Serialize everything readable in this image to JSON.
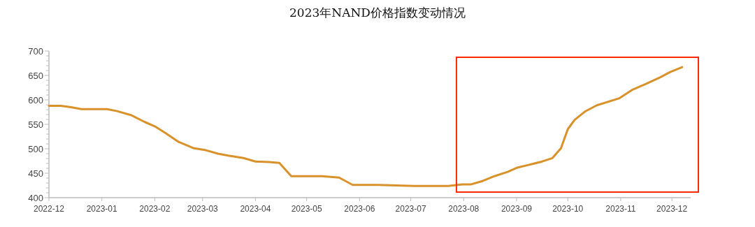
{
  "chart_data": {
    "type": "line",
    "title": "2023年NAND价格指数变动情况",
    "x": [
      "2022-12-01",
      "2022-12-08",
      "2022-12-14",
      "2022-12-20",
      "2023-01-04",
      "2023-01-10",
      "2023-01-18",
      "2023-01-26",
      "2023-02-01",
      "2023-02-07",
      "2023-02-15",
      "2023-02-24",
      "2023-03-03",
      "2023-03-10",
      "2023-03-16",
      "2023-03-25",
      "2023-04-01",
      "2023-04-09",
      "2023-04-15",
      "2023-04-22",
      "2023-05-10",
      "2023-05-20",
      "2023-05-28",
      "2023-06-12",
      "2023-07-03",
      "2023-07-15",
      "2023-07-23",
      "2023-07-31",
      "2023-08-05",
      "2023-08-12",
      "2023-08-19",
      "2023-08-27",
      "2023-09-01",
      "2023-09-08",
      "2023-09-16",
      "2023-09-22",
      "2023-09-27",
      "2023-10-01",
      "2023-10-05",
      "2023-10-11",
      "2023-10-18",
      "2023-10-31",
      "2023-11-08",
      "2023-11-16",
      "2023-11-24",
      "2023-11-30",
      "2023-12-07"
    ],
    "series": [
      {
        "color": "#d9912a",
        "values": [
          588,
          588,
          585,
          581,
          581,
          577,
          569,
          555,
          546,
          533,
          514,
          501,
          497,
          490,
          486,
          481,
          474,
          473,
          471,
          444,
          444,
          441,
          426,
          426,
          424,
          424,
          424,
          427,
          427,
          434,
          444,
          453,
          461,
          467,
          474,
          481,
          501,
          540,
          559,
          576,
          589,
          603,
          621,
          633,
          646,
          657,
          667
        ]
      }
    ],
    "xlim": [
      "2022-12-01",
      "2023-12-12"
    ],
    "xticks": [
      "2022-12",
      "2023-01",
      "2023-02",
      "2023-03",
      "2023-04",
      "2023-05",
      "2023-06",
      "2023-07",
      "2023-08",
      "2023-09",
      "2023-10",
      "2023-11",
      "2023-12"
    ],
    "ylim": [
      400,
      700
    ],
    "yticks": [
      400,
      {
        "value": 410,
        "label": null
      },
      {
        "value": 420,
        "label": null
      },
      {
        "value": 430,
        "label": null
      },
      {
        "value": 440,
        "label": null
      },
      450,
      {
        "value": 460,
        "label": null
      },
      {
        "value": 470,
        "label": null
      },
      {
        "value": 480,
        "label": null
      },
      {
        "value": 490,
        "label": null
      },
      500,
      {
        "value": 510,
        "label": null
      },
      {
        "value": 520,
        "label": null
      },
      {
        "value": 530,
        "label": null
      },
      {
        "value": 540,
        "label": null
      },
      550,
      {
        "value": 560,
        "label": null
      },
      {
        "value": 570,
        "label": null
      },
      {
        "value": 580,
        "label": null
      },
      {
        "value": 590,
        "label": null
      },
      600,
      {
        "value": 610,
        "label": null
      },
      {
        "value": 620,
        "label": null
      },
      {
        "value": 630,
        "label": null
      },
      {
        "value": 640,
        "label": null
      },
      650,
      {
        "value": 660,
        "label": null
      },
      {
        "value": 670,
        "label": null
      },
      {
        "value": 680,
        "label": null
      },
      {
        "value": 690,
        "label": null
      },
      700
    ],
    "grid": false,
    "marker": "none",
    "line_style": "solid"
  }
}
